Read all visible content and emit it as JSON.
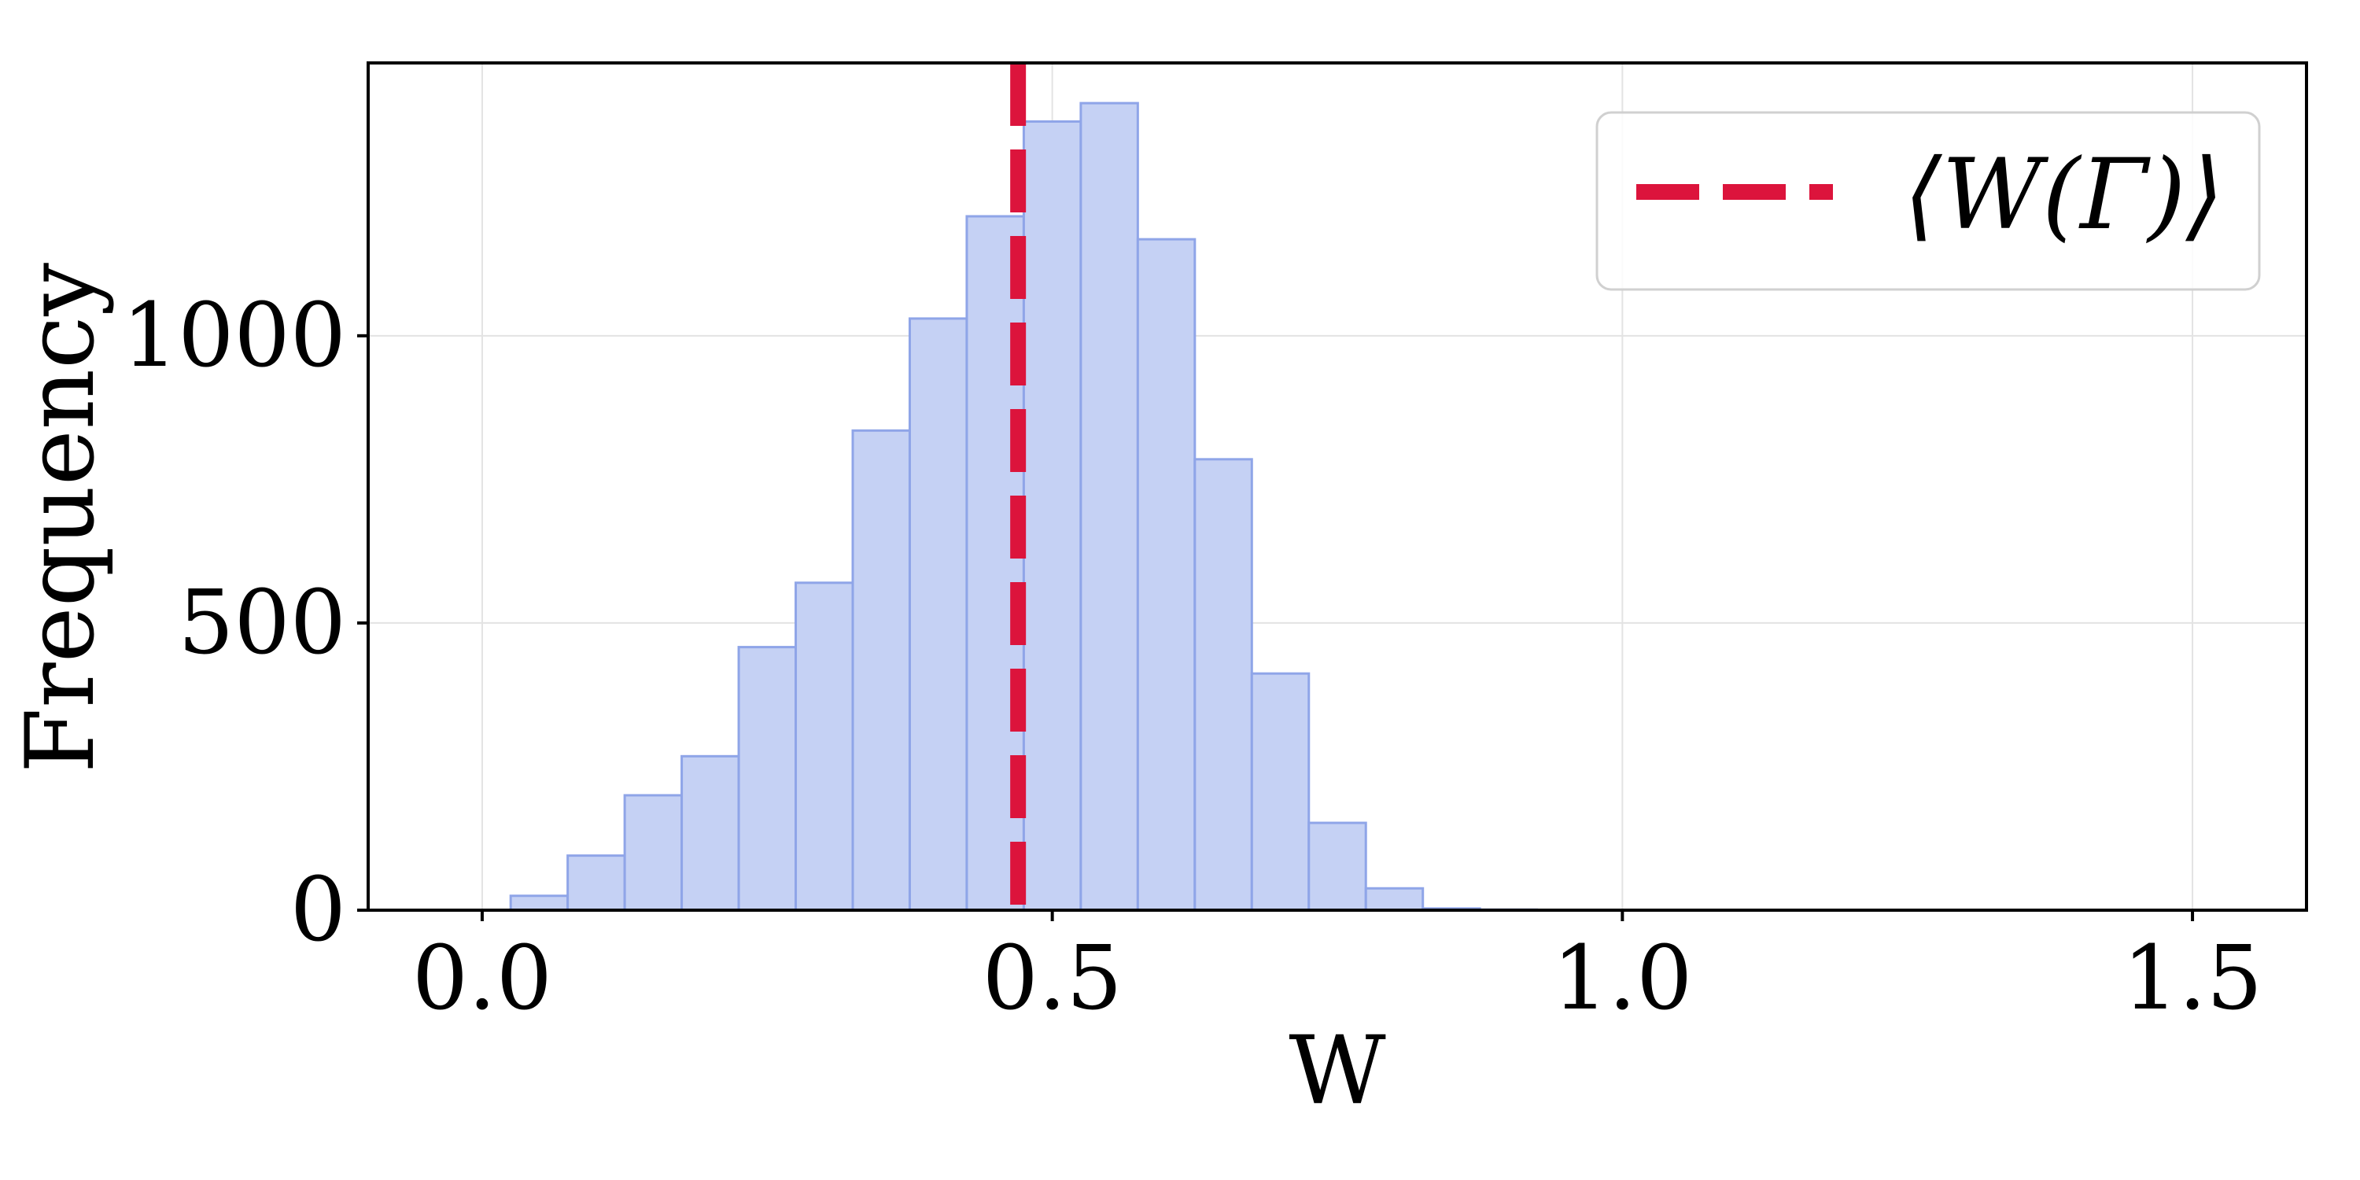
{
  "chart_data": {
    "type": "bar",
    "subtype": "histogram",
    "xlabel": "W",
    "ylabel": "Frequency",
    "xlim": [
      -0.1,
      1.6
    ],
    "ylim": [
      0,
      1475
    ],
    "xticks": [
      0.0,
      0.5,
      1.0,
      1.5
    ],
    "xtick_labels": [
      "0.0",
      "0.5",
      "1.0",
      "1.5"
    ],
    "yticks": [
      0,
      500,
      1000
    ],
    "ytick_labels": [
      "0",
      "500",
      "1000"
    ],
    "grid": true,
    "bin_width": 0.05,
    "bins": [
      {
        "x0": 0.025,
        "x1": 0.075,
        "count": 25
      },
      {
        "x0": 0.075,
        "x1": 0.125,
        "count": 95
      },
      {
        "x0": 0.125,
        "x1": 0.175,
        "count": 200
      },
      {
        "x0": 0.175,
        "x1": 0.225,
        "count": 268
      },
      {
        "x0": 0.225,
        "x1": 0.275,
        "count": 458
      },
      {
        "x0": 0.275,
        "x1": 0.325,
        "count": 570
      },
      {
        "x0": 0.325,
        "x1": 0.375,
        "count": 835
      },
      {
        "x0": 0.375,
        "x1": 0.425,
        "count": 1030
      },
      {
        "x0": 0.425,
        "x1": 0.475,
        "count": 1208
      },
      {
        "x0": 0.475,
        "x1": 0.525,
        "count": 1373
      },
      {
        "x0": 0.525,
        "x1": 0.575,
        "count": 1405
      },
      {
        "x0": 0.575,
        "x1": 0.625,
        "count": 1168
      },
      {
        "x0": 0.625,
        "x1": 0.675,
        "count": 785
      },
      {
        "x0": 0.675,
        "x1": 0.725,
        "count": 412
      },
      {
        "x0": 0.725,
        "x1": 0.775,
        "count": 152
      },
      {
        "x0": 0.775,
        "x1": 0.825,
        "count": 38
      },
      {
        "x0": 0.825,
        "x1": 0.875,
        "count": 3
      },
      {
        "x0": 0.875,
        "x1": 0.925,
        "count": 1
      }
    ],
    "mean_line": {
      "x": 0.47,
      "label": "⟨W(Γ)⟩",
      "color": "#dc143c"
    },
    "bar_fill": "#c5d1f4",
    "bar_edge": "#8fa5e8",
    "legend_position": "top-right"
  }
}
